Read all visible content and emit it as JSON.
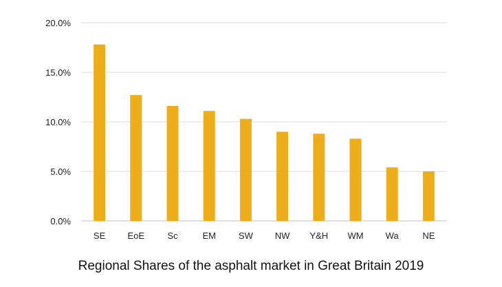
{
  "chart_data": {
    "type": "bar",
    "title": "Regional Shares of the asphalt market in Great Britain 2019",
    "xlabel": "",
    "ylabel": "",
    "ylim": [
      0,
      20
    ],
    "yticks": [
      0,
      5,
      10,
      15,
      20
    ],
    "ytick_labels": [
      "0.0%",
      "5.0%",
      "10.0%",
      "15.0%",
      "20.0%"
    ],
    "categories": [
      "SE",
      "EoE",
      "Sc",
      "EM",
      "SW",
      "NW",
      "Y&H",
      "WM",
      "Wa",
      "NE"
    ],
    "values": [
      17.8,
      12.7,
      11.6,
      11.1,
      10.3,
      9.0,
      8.8,
      8.3,
      5.4,
      5.0
    ],
    "bar_color": "#EEAD1A",
    "grid": true,
    "grid_color": "#d9d9d9",
    "legend": "none"
  }
}
